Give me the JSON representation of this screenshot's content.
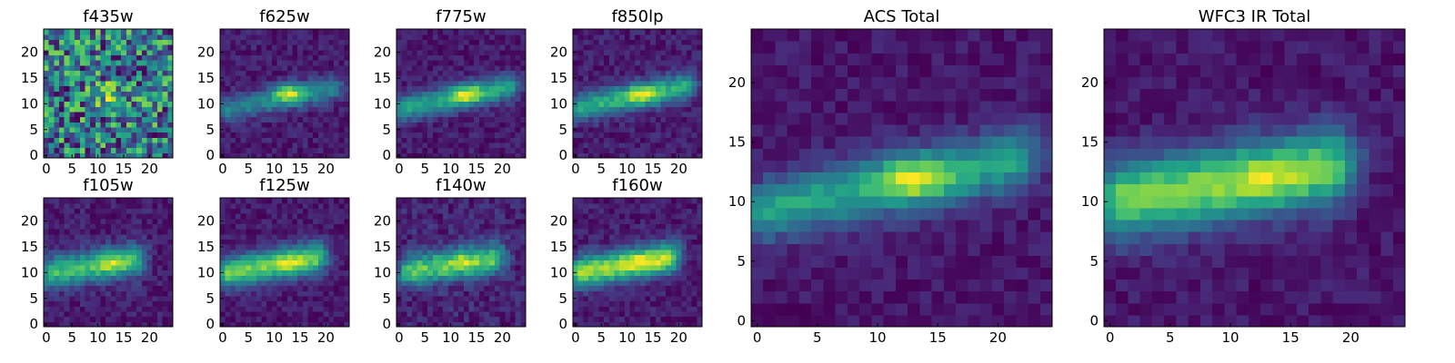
{
  "chart_data": [
    {
      "type": "heatmap",
      "title": "f435w",
      "xticks": [
        "0",
        "5",
        "10",
        "15",
        "20"
      ],
      "yticks": [
        "0",
        "5",
        "10",
        "15",
        "20"
      ],
      "xlim": [
        0,
        25
      ],
      "ylim": [
        0,
        25
      ],
      "colormap": "viridis",
      "source": {
        "base": 0.62,
        "noise": 0.26,
        "line_amp": 0.0,
        "knot_amp": 0.18,
        "knot_x": 12.5,
        "knot_y": 11.8,
        "knot_sx": 2.3,
        "knot_sy": 1.8,
        "seed": 11
      }
    },
    {
      "type": "heatmap",
      "title": "f625w",
      "xticks": [
        "0",
        "5",
        "10",
        "15",
        "20"
      ],
      "yticks": [
        "0",
        "5",
        "10",
        "15",
        "20"
      ],
      "xlim": [
        0,
        25
      ],
      "ylim": [
        0,
        25
      ],
      "colormap": "viridis",
      "source": {
        "base": 0.12,
        "noise": 0.08,
        "line_amp": 0.38,
        "x0": 0,
        "y0": 8.8,
        "slope": 0.2,
        "line_width": 1.7,
        "line_start": 1,
        "line_end": 21,
        "knot_amp": 0.55,
        "knot_x": 12.8,
        "knot_y": 12.2,
        "knot_sx": 2.2,
        "knot_sy": 1.3,
        "seed": 23
      }
    },
    {
      "type": "heatmap",
      "title": "f775w",
      "xticks": [
        "0",
        "5",
        "10",
        "15",
        "20"
      ],
      "yticks": [
        "0",
        "5",
        "10",
        "15",
        "20"
      ],
      "xlim": [
        0,
        25
      ],
      "ylim": [
        0,
        25
      ],
      "colormap": "viridis",
      "source": {
        "base": 0.12,
        "noise": 0.08,
        "line_amp": 0.55,
        "x0": 0,
        "y0": 9.0,
        "slope": 0.2,
        "line_width": 1.7,
        "line_start": 1,
        "line_end": 21,
        "knot_amp": 0.45,
        "knot_x": 13.0,
        "knot_y": 12.0,
        "knot_sx": 2.2,
        "knot_sy": 1.3,
        "seed": 37
      }
    },
    {
      "type": "heatmap",
      "title": "f850lp",
      "xticks": [
        "0",
        "5",
        "10",
        "15",
        "20"
      ],
      "yticks": [
        "0",
        "5",
        "10",
        "15",
        "20"
      ],
      "xlim": [
        0,
        25
      ],
      "ylim": [
        0,
        25
      ],
      "colormap": "viridis",
      "source": {
        "base": 0.12,
        "noise": 0.09,
        "line_amp": 0.6,
        "x0": 0,
        "y0": 9.2,
        "slope": 0.2,
        "line_width": 1.8,
        "line_start": 1,
        "line_end": 21,
        "knot_amp": 0.4,
        "knot_x": 13.0,
        "knot_y": 12.0,
        "knot_sx": 2.4,
        "knot_sy": 1.4,
        "seed": 41
      }
    },
    {
      "type": "heatmap",
      "title": "f105w",
      "xticks": [
        "0",
        "5",
        "10",
        "15",
        "20"
      ],
      "yticks": [
        "0",
        "5",
        "10",
        "15",
        "20"
      ],
      "xlim": [
        0,
        25
      ],
      "ylim": [
        0,
        25
      ],
      "colormap": "viridis",
      "source": {
        "base": 0.16,
        "noise": 0.1,
        "line_amp": 0.72,
        "x0": 0,
        "y0": 10.0,
        "slope": 0.14,
        "line_width": 2.1,
        "line_start": 1,
        "line_end": 17,
        "knot_amp": 0.3,
        "knot_x": 12.5,
        "knot_y": 12.0,
        "knot_sx": 2.0,
        "knot_sy": 1.4,
        "seed": 53
      }
    },
    {
      "type": "heatmap",
      "title": "f125w",
      "xticks": [
        "0",
        "5",
        "10",
        "15",
        "20"
      ],
      "yticks": [
        "0",
        "5",
        "10",
        "15",
        "20"
      ],
      "xlim": [
        0,
        25
      ],
      "ylim": [
        0,
        25
      ],
      "colormap": "viridis",
      "source": {
        "base": 0.13,
        "noise": 0.08,
        "line_amp": 0.8,
        "x0": 0,
        "y0": 10.0,
        "slope": 0.16,
        "line_width": 2.1,
        "line_start": 1,
        "line_end": 18,
        "knot_amp": 0.2,
        "knot_x": 13.0,
        "knot_y": 12.0,
        "knot_sx": 2.2,
        "knot_sy": 1.4,
        "seed": 67
      }
    },
    {
      "type": "heatmap",
      "title": "f140w",
      "xticks": [
        "0",
        "5",
        "10",
        "15",
        "20"
      ],
      "yticks": [
        "0",
        "5",
        "10",
        "15",
        "20"
      ],
      "xlim": [
        0,
        25
      ],
      "ylim": [
        0,
        25
      ],
      "colormap": "viridis",
      "source": {
        "base": 0.16,
        "noise": 0.12,
        "line_amp": 0.78,
        "x0": 0,
        "y0": 10.2,
        "slope": 0.14,
        "line_width": 2.1,
        "line_start": 2,
        "line_end": 18,
        "knot_amp": 0.2,
        "knot_x": 12.5,
        "knot_y": 12.0,
        "knot_sx": 2.2,
        "knot_sy": 1.4,
        "seed": 79
      }
    },
    {
      "type": "heatmap",
      "title": "f160w",
      "xticks": [
        "0",
        "5",
        "10",
        "15",
        "20"
      ],
      "yticks": [
        "0",
        "5",
        "10",
        "15",
        "20"
      ],
      "xlim": [
        0,
        25
      ],
      "ylim": [
        0,
        25
      ],
      "colormap": "viridis",
      "source": {
        "base": 0.13,
        "noise": 0.08,
        "line_amp": 0.8,
        "x0": 0,
        "y0": 10.0,
        "slope": 0.16,
        "line_width": 2.1,
        "line_start": 1,
        "line_end": 18,
        "knot_amp": 0.2,
        "knot_x": 13.0,
        "knot_y": 12.0,
        "knot_sx": 2.2,
        "knot_sy": 1.4,
        "seed": 83
      }
    },
    {
      "type": "heatmap",
      "title": "ACS Total",
      "xticks": [
        "0",
        "5",
        "10",
        "15",
        "20"
      ],
      "yticks": [
        "0",
        "5",
        "10",
        "15",
        "20"
      ],
      "xlim": [
        0,
        25
      ],
      "ylim": [
        0,
        25
      ],
      "colormap": "viridis",
      "source": {
        "base": 0.12,
        "noise": 0.07,
        "line_amp": 0.58,
        "x0": 0,
        "y0": 9.2,
        "slope": 0.2,
        "line_width": 1.8,
        "line_start": 1,
        "line_end": 21,
        "knot_amp": 0.45,
        "knot_x": 13.0,
        "knot_y": 12.0,
        "knot_sx": 2.1,
        "knot_sy": 1.3,
        "seed": 97
      }
    },
    {
      "type": "heatmap",
      "title": "WFC3 IR Total",
      "xticks": [
        "0",
        "5",
        "10",
        "15",
        "20"
      ],
      "yticks": [
        "0",
        "5",
        "10",
        "15",
        "20"
      ],
      "xlim": [
        0,
        25
      ],
      "ylim": [
        0,
        25
      ],
      "colormap": "viridis",
      "source": {
        "base": 0.12,
        "noise": 0.07,
        "line_amp": 0.82,
        "x0": 0,
        "y0": 10.0,
        "slope": 0.16,
        "line_width": 2.2,
        "line_start": 1,
        "line_end": 18,
        "knot_amp": 0.18,
        "knot_x": 13.0,
        "knot_y": 12.0,
        "knot_sx": 2.2,
        "knot_sy": 1.4,
        "seed": 101
      }
    }
  ]
}
